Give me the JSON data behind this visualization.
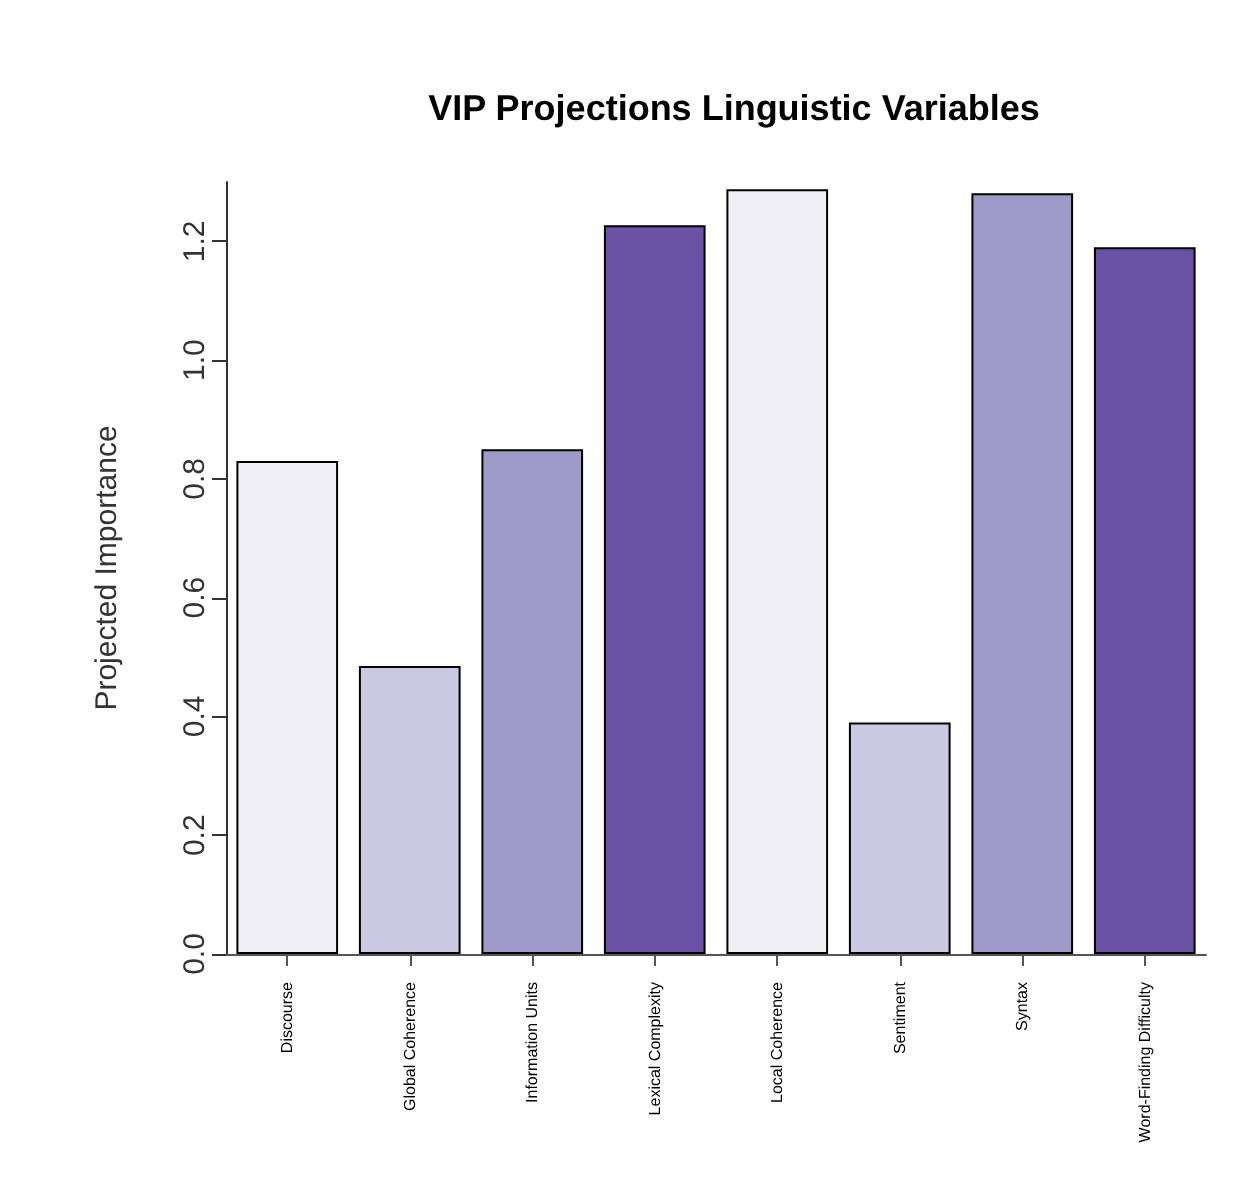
{
  "chart_data": {
    "type": "bar",
    "title": "VIP Projections Linguistic Variables",
    "ylabel": "Projected Importance",
    "categories": [
      "Discourse",
      "Global Coherence",
      "Information Units",
      "Lexical Complexity",
      "Local Coherence",
      "Sentiment",
      "Syntax",
      "Word-Finding Difficulty"
    ],
    "values": [
      0.83,
      0.485,
      0.85,
      1.227,
      1.288,
      0.39,
      1.281,
      1.19
    ],
    "colors": [
      "#f0eff6",
      "#cbc9e2",
      "#9e9ac8",
      "#6a51a3",
      "#f0eff6",
      "#cbc9e2",
      "#9e9ac8",
      "#6a51a3"
    ],
    "ylim": [
      0,
      1.3
    ],
    "yticks": [
      {
        "value": 0,
        "label": "0.0"
      },
      0.2,
      0.4,
      0.6,
      0.8,
      {
        "value": 1,
        "label": "1.0"
      },
      1.2
    ],
    "grid": false
  }
}
